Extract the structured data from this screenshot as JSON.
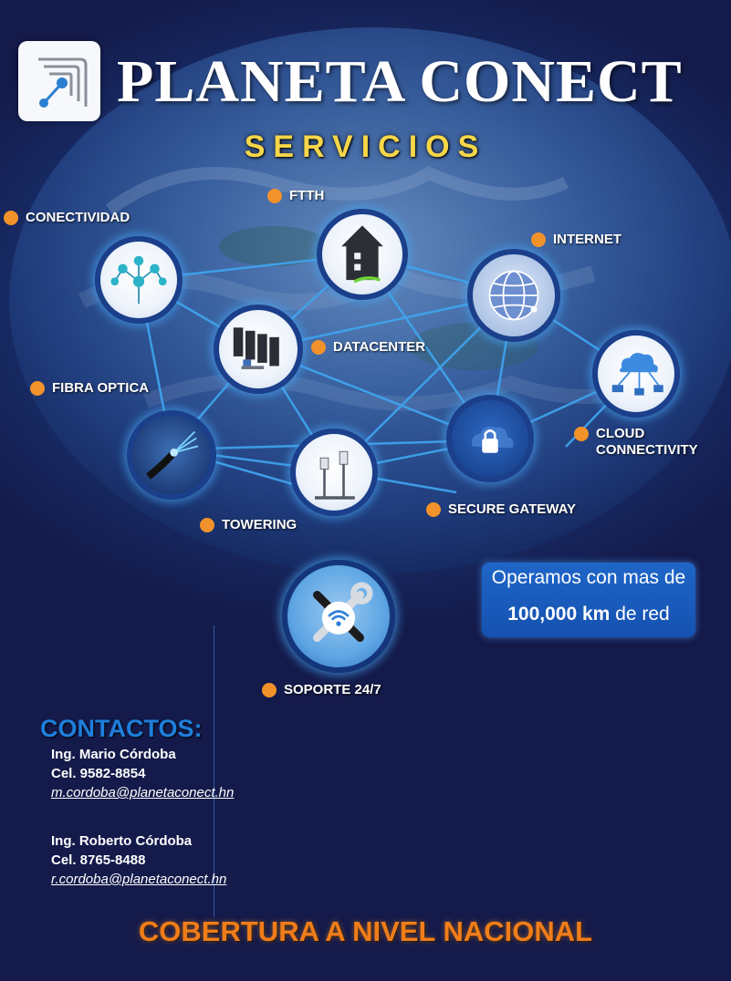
{
  "header": {
    "brand": "PLANETA CONECT",
    "subtitle": "SERVICIOS"
  },
  "services": [
    {
      "id": "ftth",
      "label": "FTTH",
      "icon": "house-fiber-icon"
    },
    {
      "id": "conectividad",
      "label": "CONECTIVIDAD",
      "icon": "network-tree-icon"
    },
    {
      "id": "internet",
      "label": "INTERNET",
      "icon": "globe-icon"
    },
    {
      "id": "datacenter",
      "label": "DATACENTER",
      "icon": "server-racks-icon"
    },
    {
      "id": "fibra",
      "label": "FIBRA OPTICA",
      "icon": "fiber-cable-icon"
    },
    {
      "id": "cloud",
      "label": "CLOUD\nCONNECTIVITY",
      "icon": "cloud-devices-icon"
    },
    {
      "id": "secure",
      "label": "SECURE GATEWAY",
      "icon": "padlock-cloud-icon"
    },
    {
      "id": "towering",
      "label": "TOWERING",
      "icon": "tower-antenna-icon"
    },
    {
      "id": "soporte",
      "label": "SOPORTE 24/7",
      "icon": "wrench-screwdriver-wifi-icon"
    }
  ],
  "highlight": {
    "line1": "Operamos con mas de",
    "km_value": "100,000 km",
    "km_suffix": " de red"
  },
  "contacts": {
    "title": "CONTACTOS:",
    "people": [
      {
        "name": "Ing. Mario Córdoba",
        "phone": "Cel. 9582-8854",
        "email": "m.cordoba@planetaconect.hn"
      },
      {
        "name": "Ing. Roberto Córdoba",
        "phone": "Cel. 8765-8488",
        "email": "r.cordoba@planetaconect.hn"
      }
    ]
  },
  "footer": "COBERTURA A NIVEL NACIONAL",
  "colors": {
    "background": "#141a4a",
    "accent_orange": "#f2922b",
    "subtitle_gold": "#f6d64a",
    "contacts_blue": "#1e7fdc",
    "footer_orange": "#f07d1a",
    "node_glow": "#46a0eb"
  }
}
